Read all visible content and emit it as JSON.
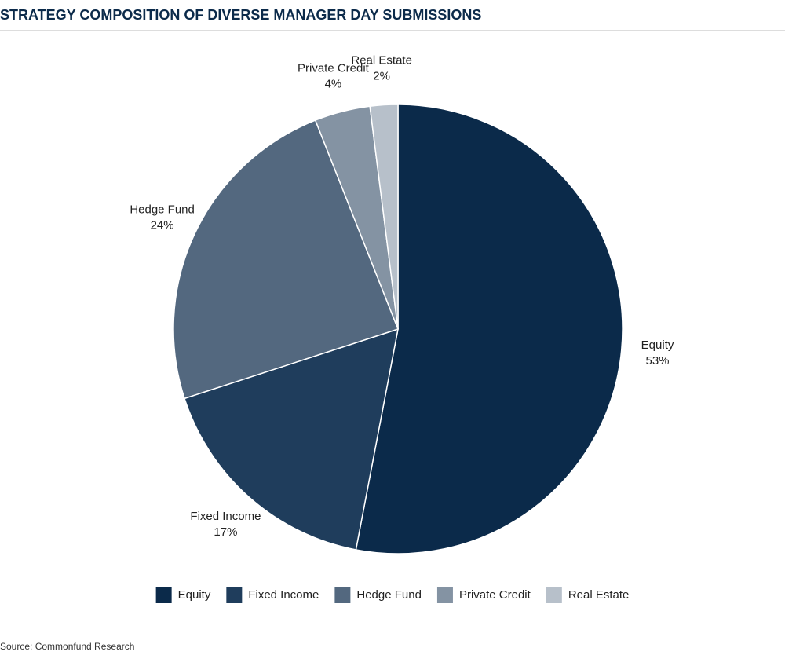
{
  "chart_data": {
    "type": "pie",
    "title": "STRATEGY COMPOSITION OF DIVERSE MANAGER DAY SUBMISSIONS",
    "categories": [
      "Equity",
      "Fixed Income",
      "Hedge Fund",
      "Private Credit",
      "Real Estate"
    ],
    "values": [
      53,
      17,
      24,
      4,
      2
    ],
    "value_labels": [
      "53%",
      "17%",
      "24%",
      "4%",
      "2%"
    ],
    "colors": [
      "#0b2a4a",
      "#1f3d5c",
      "#53687f",
      "#8493a3",
      "#b7c0ca"
    ],
    "legend": "bottom",
    "source": "Source:  Commonfund Research"
  }
}
